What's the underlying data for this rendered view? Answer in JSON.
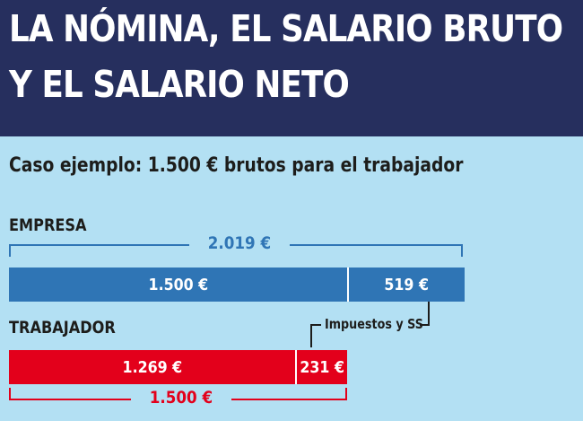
{
  "title_line1": "LA NÓMINA, EL SALARIO BRUTO",
  "title_line2": "Y EL SALARIO NETO",
  "subtitle": "Caso ejemplo: 1.500 € brutos para el trabajador",
  "colors": {
    "header": "#262f5e",
    "background": "#b3e0f3",
    "empresa": "#2f75b5",
    "trabajador": "#e3001b"
  },
  "chart_data": {
    "type": "bar",
    "orientation": "horizontal",
    "stacked": true,
    "unit": "€",
    "xlim": [
      0,
      2019
    ],
    "groups": [
      {
        "name": "EMPRESA",
        "total": 2019,
        "total_label": "2.019 €",
        "segments": [
          {
            "value": 1500,
            "label": "1.500 €"
          },
          {
            "value": 519,
            "label": "519 €"
          }
        ]
      },
      {
        "name": "TRABAJADOR",
        "total": 1500,
        "total_label": "1.500 €",
        "segments": [
          {
            "value": 1269,
            "label": "1.269 €"
          },
          {
            "value": 231,
            "label": "231 €"
          }
        ]
      }
    ],
    "annotations": [
      {
        "text": "Impuestos y SS"
      }
    ]
  }
}
